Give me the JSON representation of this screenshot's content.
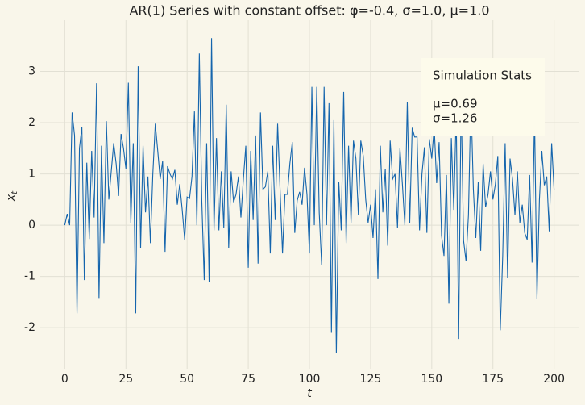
{
  "chart_data": {
    "type": "line",
    "title": "AR(1) Series with constant offset: φ=-0.4, σ=1.0, μ=1.0",
    "x_label": "t",
    "y_label": "x",
    "y_label_sub": "t",
    "annotation": {
      "title": "Simulation Stats",
      "lines": [
        "μ=0.69",
        "σ=1.26"
      ]
    },
    "grid": true,
    "xlim": [
      -10,
      210
    ],
    "ylim": [
      -2.8,
      4.0
    ],
    "xticks": [
      0,
      25,
      50,
      75,
      100,
      125,
      150,
      175,
      200
    ],
    "yticks": [
      -2,
      -1,
      0,
      1,
      2,
      3
    ],
    "x": [
      0,
      1,
      2,
      3,
      4,
      5,
      6,
      7,
      8,
      9,
      10,
      11,
      12,
      13,
      14,
      15,
      16,
      17,
      18,
      19,
      20,
      21,
      22,
      23,
      24,
      25,
      26,
      27,
      28,
      29,
      30,
      31,
      32,
      33,
      34,
      35,
      36,
      37,
      38,
      39,
      40,
      41,
      42,
      43,
      44,
      45,
      46,
      47,
      48,
      49,
      50,
      51,
      52,
      53,
      54,
      55,
      56,
      57,
      58,
      59,
      60,
      61,
      62,
      63,
      64,
      65,
      66,
      67,
      68,
      69,
      70,
      71,
      72,
      73,
      74,
      75,
      76,
      77,
      78,
      79,
      80,
      81,
      82,
      83,
      84,
      85,
      86,
      87,
      88,
      89,
      90,
      91,
      92,
      93,
      94,
      95,
      96,
      97,
      98,
      99,
      100,
      101,
      102,
      103,
      104,
      105,
      106,
      107,
      108,
      109,
      110,
      111,
      112,
      113,
      114,
      115,
      116,
      117,
      118,
      119,
      120,
      121,
      122,
      123,
      124,
      125,
      126,
      127,
      128,
      129,
      130,
      131,
      132,
      133,
      134,
      135,
      136,
      137,
      138,
      139,
      140,
      141,
      142,
      143,
      144,
      145,
      146,
      147,
      148,
      149,
      150,
      151,
      152,
      153,
      154,
      155,
      156,
      157,
      158,
      159,
      160,
      161,
      162,
      163,
      164,
      165,
      166,
      167,
      168,
      169,
      170,
      171,
      172,
      173,
      174,
      175,
      176,
      177,
      178,
      179,
      180,
      181,
      182,
      183,
      184,
      185,
      186,
      187,
      188,
      189,
      190,
      191,
      192,
      193,
      194,
      195,
      196,
      197,
      198,
      199,
      200
    ],
    "series": [
      {
        "color": "#1565ad",
        "values": [
          0,
          0.22,
          0,
          2.2,
          1.75,
          -1.72,
          1.5,
          1.92,
          -1.07,
          1.22,
          -0.27,
          1.45,
          0.15,
          2.77,
          -1.42,
          1.55,
          -0.35,
          2.03,
          0.5,
          1.05,
          1.6,
          1.2,
          0.57,
          1.78,
          1.5,
          1.1,
          2.78,
          0.05,
          1.6,
          -1.72,
          3.1,
          -0.45,
          1.55,
          0.25,
          0.95,
          -0.35,
          1.0,
          1.98,
          1.45,
          0.9,
          1.25,
          -0.52,
          1.15,
          1.0,
          0.9,
          1.08,
          0.4,
          0.8,
          0.3,
          -0.28,
          0.55,
          0.52,
          0.95,
          2.22,
          0.0,
          3.35,
          0.5,
          -1.07,
          1.6,
          -1.1,
          3.65,
          -0.1,
          1.7,
          -0.1,
          1.05,
          -0.05,
          2.35,
          -0.45,
          1.05,
          0.45,
          0.6,
          0.95,
          0.15,
          0.9,
          1.55,
          -0.83,
          1.45,
          0.1,
          1.75,
          -0.75,
          2.2,
          0.7,
          0.75,
          1.05,
          -0.55,
          1.55,
          0.1,
          1.98,
          0.7,
          -0.55,
          0.6,
          0.6,
          1.2,
          1.62,
          -0.15,
          0.48,
          0.65,
          0.4,
          1.12,
          0.6,
          -0.55,
          2.7,
          0.0,
          2.7,
          0.25,
          -0.78,
          2.7,
          0.0,
          2.38,
          -2.1,
          2.05,
          -2.5,
          0.85,
          -0.1,
          2.6,
          -0.35,
          1.55,
          0.05,
          1.65,
          1.3,
          0.2,
          1.65,
          1.35,
          0.5,
          0.05,
          0.4,
          -0.25,
          0.7,
          -1.05,
          1.55,
          0.25,
          1.1,
          -0.4,
          1.65,
          0.9,
          1.0,
          -0.05,
          1.5,
          0.8,
          0.0,
          2.4,
          0.05,
          1.9,
          1.72,
          1.72,
          -0.1,
          1.0,
          1.52,
          -0.15,
          1.68,
          1.3,
          1.92,
          0.82,
          1.62,
          -0.2,
          -0.6,
          0.98,
          -1.53,
          1.7,
          0.3,
          2.2,
          -2.22,
          2.5,
          -0.3,
          -0.7,
          0.2,
          2.5,
          0.7,
          -0.25,
          0.85,
          -0.5,
          1.2,
          0.35,
          0.6,
          1.05,
          0.5,
          0.8,
          1.35,
          -2.05,
          -0.6,
          1.6,
          -1.03,
          1.3,
          0.9,
          0.2,
          1.05,
          0.05,
          0.4,
          -0.15,
          -0.28,
          0.98,
          -0.73,
          2.18,
          -1.43,
          0.5,
          1.45,
          0.78,
          0.95,
          -0.12,
          1.6,
          0.68
        ]
      }
    ]
  }
}
